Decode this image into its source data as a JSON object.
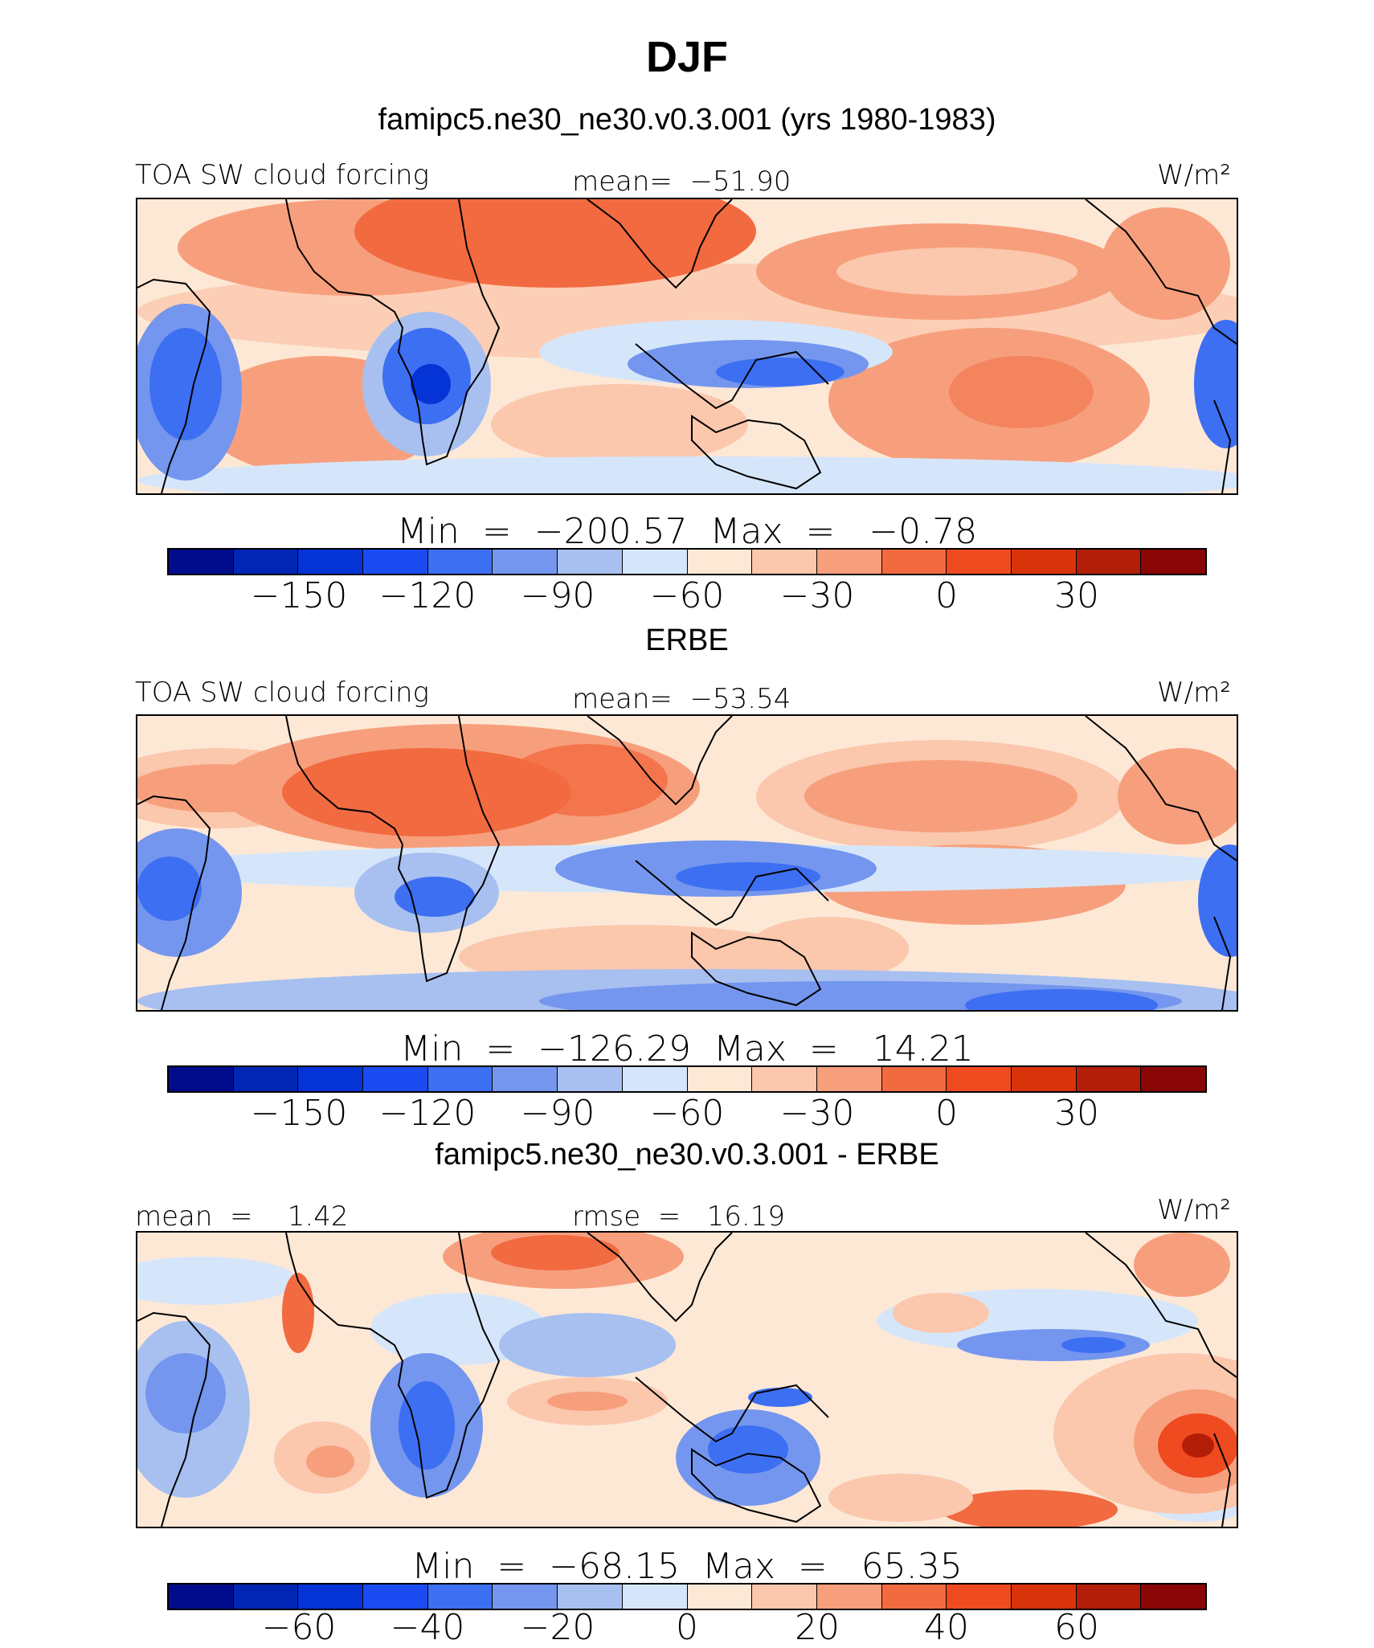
{
  "title": "DJF",
  "colors": {
    "palette": [
      "#000c8c",
      "#0226b4",
      "#0433d6",
      "#1a4cf2",
      "#3d6ff2",
      "#7496ee",
      "#a7c0f0",
      "#d6e6fa",
      "#fde8d6",
      "#fbc7ad",
      "#f79f7c",
      "#f26a40",
      "#ef4a20",
      "#d9330c",
      "#b21e08",
      "#8a0505"
    ],
    "ocean": "#fde8d6",
    "coast": "#000000"
  },
  "panels": [
    {
      "id": "model",
      "title": "famipc5.ne30_ne30.v0.3.001 (yrs 1980-1983)",
      "left_label": "TOA SW cloud forcing",
      "center_label": "mean=  −51.90",
      "units": "W/m²",
      "minmax": "Min  =  −200.57  Max  =   −0.78",
      "ticks": [
        "−150",
        "−120",
        "−90",
        "−60",
        "−30",
        "0",
        "30"
      ]
    },
    {
      "id": "obs",
      "title": "ERBE",
      "left_label": "TOA SW cloud forcing",
      "center_label": "mean=  −53.54",
      "units": "W/m²",
      "minmax": "Min  =  −126.29  Max  =   14.21",
      "ticks": [
        "−150",
        "−120",
        "−90",
        "−60",
        "−30",
        "0",
        "30"
      ]
    },
    {
      "id": "diff",
      "title": "famipc5.ne30_ne30.v0.3.001 - ERBE",
      "left_label": "mean  =    1.42",
      "center_label": "rmse  =   16.19",
      "units": "W/m²",
      "minmax": "Min  =  −68.15  Max  =   65.35",
      "ticks": [
        "−60",
        "−40",
        "−20",
        "0",
        "20",
        "40",
        "60"
      ]
    }
  ]
}
